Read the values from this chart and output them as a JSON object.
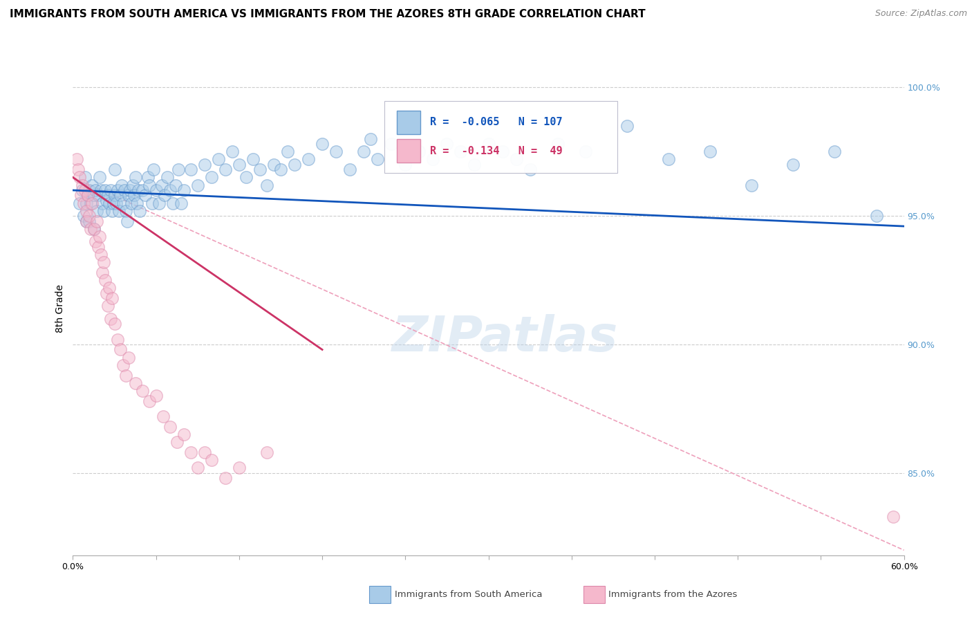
{
  "title": "IMMIGRANTS FROM SOUTH AMERICA VS IMMIGRANTS FROM THE AZORES 8TH GRADE CORRELATION CHART",
  "source_text": "Source: ZipAtlas.com",
  "ylabel": "8th Grade",
  "xmin": 0.0,
  "xmax": 0.6,
  "ymin": 0.818,
  "ymax": 1.01,
  "yticks": [
    0.85,
    0.9,
    0.95,
    1.0
  ],
  "ytick_labels": [
    "85.0%",
    "90.0%",
    "95.0%",
    "100.0%"
  ],
  "blue_color": "#A8CBE8",
  "blue_edge_color": "#6699CC",
  "pink_color": "#F5B8CC",
  "pink_edge_color": "#DD88AA",
  "blue_line_color": "#1155BB",
  "pink_line_color": "#CC3366",
  "dashed_line_color": "#EEA0BB",
  "legend_blue_rval": "-0.065",
  "legend_blue_nval": "107",
  "legend_pink_rval": "-0.134",
  "legend_pink_nval": "49",
  "blue_scatter_x": [
    0.005,
    0.007,
    0.008,
    0.009,
    0.01,
    0.01,
    0.011,
    0.012,
    0.012,
    0.013,
    0.014,
    0.015,
    0.015,
    0.016,
    0.017,
    0.018,
    0.019,
    0.02,
    0.021,
    0.022,
    0.023,
    0.024,
    0.025,
    0.026,
    0.027,
    0.028,
    0.029,
    0.03,
    0.03,
    0.031,
    0.032,
    0.033,
    0.034,
    0.035,
    0.036,
    0.037,
    0.038,
    0.039,
    0.04,
    0.041,
    0.042,
    0.043,
    0.044,
    0.045,
    0.046,
    0.047,
    0.048,
    0.05,
    0.052,
    0.054,
    0.055,
    0.057,
    0.058,
    0.06,
    0.062,
    0.064,
    0.066,
    0.068,
    0.07,
    0.072,
    0.074,
    0.076,
    0.078,
    0.08,
    0.085,
    0.09,
    0.095,
    0.1,
    0.105,
    0.11,
    0.115,
    0.12,
    0.125,
    0.13,
    0.135,
    0.14,
    0.145,
    0.15,
    0.155,
    0.16,
    0.17,
    0.18,
    0.19,
    0.2,
    0.21,
    0.215,
    0.22,
    0.23,
    0.24,
    0.25,
    0.26,
    0.27,
    0.28,
    0.29,
    0.3,
    0.31,
    0.32,
    0.33,
    0.35,
    0.37,
    0.4,
    0.43,
    0.46,
    0.49,
    0.52,
    0.55,
    0.58
  ],
  "blue_scatter_y": [
    0.955,
    0.96,
    0.95,
    0.965,
    0.955,
    0.948,
    0.958,
    0.96,
    0.948,
    0.955,
    0.962,
    0.958,
    0.945,
    0.96,
    0.952,
    0.958,
    0.965,
    0.96,
    0.955,
    0.952,
    0.96,
    0.956,
    0.958,
    0.955,
    0.96,
    0.952,
    0.955,
    0.958,
    0.968,
    0.955,
    0.96,
    0.952,
    0.958,
    0.962,
    0.955,
    0.96,
    0.952,
    0.948,
    0.958,
    0.96,
    0.955,
    0.962,
    0.958,
    0.965,
    0.955,
    0.96,
    0.952,
    0.96,
    0.958,
    0.965,
    0.962,
    0.955,
    0.968,
    0.96,
    0.955,
    0.962,
    0.958,
    0.965,
    0.96,
    0.955,
    0.962,
    0.968,
    0.955,
    0.96,
    0.968,
    0.962,
    0.97,
    0.965,
    0.972,
    0.968,
    0.975,
    0.97,
    0.965,
    0.972,
    0.968,
    0.962,
    0.97,
    0.968,
    0.975,
    0.97,
    0.972,
    0.978,
    0.975,
    0.968,
    0.975,
    0.98,
    0.972,
    0.978,
    0.97,
    0.975,
    0.972,
    0.978,
    0.975,
    0.97,
    0.978,
    0.975,
    0.972,
    0.968,
    0.978,
    0.975,
    0.985,
    0.972,
    0.975,
    0.962,
    0.97,
    0.975,
    0.95
  ],
  "pink_scatter_x": [
    0.003,
    0.004,
    0.005,
    0.006,
    0.007,
    0.008,
    0.009,
    0.01,
    0.01,
    0.011,
    0.012,
    0.013,
    0.014,
    0.015,
    0.016,
    0.017,
    0.018,
    0.019,
    0.02,
    0.021,
    0.022,
    0.023,
    0.024,
    0.025,
    0.026,
    0.027,
    0.028,
    0.03,
    0.032,
    0.034,
    0.036,
    0.038,
    0.04,
    0.045,
    0.05,
    0.055,
    0.06,
    0.065,
    0.07,
    0.075,
    0.08,
    0.085,
    0.09,
    0.095,
    0.1,
    0.11,
    0.12,
    0.14,
    0.592
  ],
  "pink_scatter_y": [
    0.972,
    0.968,
    0.965,
    0.958,
    0.962,
    0.955,
    0.96,
    0.952,
    0.948,
    0.958,
    0.95,
    0.945,
    0.955,
    0.945,
    0.94,
    0.948,
    0.938,
    0.942,
    0.935,
    0.928,
    0.932,
    0.925,
    0.92,
    0.915,
    0.922,
    0.91,
    0.918,
    0.908,
    0.902,
    0.898,
    0.892,
    0.888,
    0.895,
    0.885,
    0.882,
    0.878,
    0.88,
    0.872,
    0.868,
    0.862,
    0.865,
    0.858,
    0.852,
    0.858,
    0.855,
    0.848,
    0.852,
    0.858,
    0.833
  ],
  "blue_trend_x": [
    0.0,
    0.6
  ],
  "blue_trend_y": [
    0.96,
    0.946
  ],
  "pink_trend_x": [
    0.0,
    0.18
  ],
  "pink_trend_y": [
    0.965,
    0.898
  ],
  "dashed_trend_x": [
    0.0,
    0.6
  ],
  "dashed_trend_y": [
    0.965,
    0.82
  ],
  "right_tick_color": "#5599CC",
  "background_color": "#FFFFFF",
  "title_fontsize": 11,
  "source_fontsize": 9,
  "ylabel_fontsize": 10,
  "tick_fontsize": 9,
  "watermark_text": "ZIPatlas",
  "watermark_fontsize": 52,
  "watermark_color": "#B8D0E8",
  "watermark_alpha": 0.4,
  "scatter_size": 160,
  "scatter_alpha": 0.5
}
